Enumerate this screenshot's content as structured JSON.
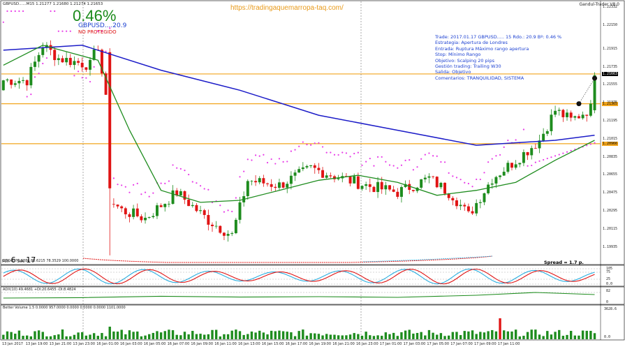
{
  "header": {
    "symbol_line": "GBPUSD......M15  1.21277 1.21680 1.21274 1.21653",
    "indicator_name": "Gandul-Trader V8.0",
    "url": "https://tradingaquemarropa-taq.com/",
    "percent": "0.46%",
    "pips": "GBPUSD....20.9",
    "status": "NO PROTEGIDO"
  },
  "info_panel": [
    "Trade: 2017.01.17 GBPUSD.....  15  Rdo.: 20.9  Bº: 0.46 %",
    "Estrategia: Apertura de Londres",
    "Entrada: Ruptura Máximo rango apertura",
    "Stop: Mínimo Rango",
    "Objetivo: Scalping 20 pips",
    "Gestión trading: Trailing W30",
    "Salida: Objetivo",
    "Comentarios: TRANQUILIDAD, SISTEMA"
  ],
  "timer": {
    "min_label": "Min",
    "min_value": "6",
    "sec_label": "Sec",
    "sec_value": "17"
  },
  "spread": "Spread = 1.7 p.",
  "oscillator_title": "DTOsc 70.8286 83.6215 78.3529 100.0000",
  "adx_title": "ADX(10) 49.4681 +DI:20.6455 -DI:8.4824",
  "volume_title": "Better Volume 1.5 0.0000 957.0000 0.0000 0.0000 0.0000 1101.0000",
  "osc_levels": [
    "105",
    "75",
    "25",
    "0.0"
  ],
  "adx_levels": [
    "82",
    "0"
  ],
  "vol_levels": [
    "3628.6",
    "0.0"
  ],
  "colors": {
    "bull": "#1e8c1e",
    "bear": "#e01414",
    "ma_slow": "#1c1cc8",
    "ma_fast": "#1e8c1e",
    "psar": "#e83ce8",
    "level": "#f2a51c",
    "osc_fast": "#e01414",
    "osc_slow": "#2aaee0"
  },
  "chart_data": {
    "type": "candlestick",
    "title": "GBPUSD M15",
    "price_ylim": [
      1.19821,
      1.22332
    ],
    "y_ticks": [
      "1.22332",
      "1.22150",
      "1.21915",
      "1.21735",
      "1.21555",
      "1.21375",
      "1.21195",
      "1.21015",
      "1.20835",
      "1.20655",
      "1.20475",
      "1.20295",
      "1.20115",
      "1.19935"
    ],
    "horizontal_levels": [
      1.21663,
      1.21365,
      1.20966
    ],
    "current_price": "1.21653",
    "level_labels": [
      "1.21663",
      "1.21365",
      "1.20966"
    ],
    "x_labels": [
      "13 Jan 2017",
      "13 Jan 19:00",
      "13 Jan 21:00",
      "13 Jan 23:00",
      "16 Jan 01:00",
      "16 Jan 03:00",
      "16 Jan 05:00",
      "16 Jan 07:00",
      "16 Jan 09:00",
      "16 Jan 11:00",
      "16 Jan 13:00",
      "16 Jan 15:00",
      "16 Jan 17:00",
      "16 Jan 19:00",
      "16 Jan 21:00",
      "16 Jan 23:00",
      "17 Jan 01:00",
      "17 Jan 03:00",
      "17 Jan 05:00",
      "17 Jan 07:00",
      "17 Jan 09:00",
      "17 Jan 11:00"
    ],
    "segments": [
      [
        0,
        1.215,
        1.216
      ],
      [
        6,
        1.219,
        1.216
      ],
      [
        10,
        1.2235,
        1.2195
      ],
      [
        14,
        1.2195,
        1.2182
      ],
      [
        22,
        1.2188,
        1.2175
      ],
      [
        24,
        1.2182,
        1.2195
      ],
      [
        26,
        1.2195,
        1.214
      ],
      [
        27,
        1.214,
        1.204
      ],
      [
        30,
        1.2052,
        1.203
      ],
      [
        36,
        1.204,
        1.2022
      ],
      [
        44,
        1.2035,
        1.2048
      ],
      [
        52,
        1.2045,
        1.202
      ],
      [
        58,
        1.2028,
        1.2005
      ],
      [
        62,
        1.204,
        1.206
      ],
      [
        70,
        1.2075,
        1.2055
      ],
      [
        78,
        1.2065,
        1.2072
      ],
      [
        86,
        1.2058,
        1.2062
      ],
      [
        92,
        1.2072,
        1.2055
      ],
      [
        100,
        1.206,
        1.2048
      ],
      [
        108,
        1.2058,
        1.2062
      ],
      [
        114,
        1.2055,
        1.2045
      ],
      [
        118,
        1.204,
        1.2025
      ],
      [
        124,
        1.2048,
        1.2062
      ],
      [
        130,
        1.2058,
        1.208
      ],
      [
        136,
        1.2082,
        1.21
      ],
      [
        140,
        1.211,
        1.213
      ],
      [
        144,
        1.213,
        1.212
      ],
      [
        149,
        1.2128,
        1.2132
      ],
      [
        150,
        1.2128,
        1.2165
      ]
    ],
    "ma_slow": [
      [
        0,
        1.219
      ],
      [
        20,
        1.2195
      ],
      [
        40,
        1.217
      ],
      [
        60,
        1.215
      ],
      [
        80,
        1.2125
      ],
      [
        100,
        1.211
      ],
      [
        120,
        1.2095
      ],
      [
        140,
        1.21
      ],
      [
        150,
        1.2105
      ]
    ],
    "ma_fast": [
      [
        0,
        1.2175
      ],
      [
        10,
        1.2195
      ],
      [
        24,
        1.218
      ],
      [
        32,
        1.211
      ],
      [
        40,
        1.205
      ],
      [
        50,
        1.2038
      ],
      [
        60,
        1.204
      ],
      [
        70,
        1.205
      ],
      [
        80,
        1.206
      ],
      [
        90,
        1.2065
      ],
      [
        100,
        1.2058
      ],
      [
        110,
        1.2045
      ],
      [
        120,
        1.205
      ],
      [
        130,
        1.2058
      ],
      [
        140,
        1.208
      ],
      [
        150,
        1.21
      ]
    ],
    "adx_series": [
      [
        0,
        0.35
      ],
      [
        20,
        0.38
      ],
      [
        40,
        0.48
      ],
      [
        60,
        0.42
      ],
      [
        80,
        0.45
      ],
      [
        100,
        0.4
      ],
      [
        120,
        0.55
      ],
      [
        135,
        0.75
      ],
      [
        150,
        0.6
      ]
    ]
  }
}
